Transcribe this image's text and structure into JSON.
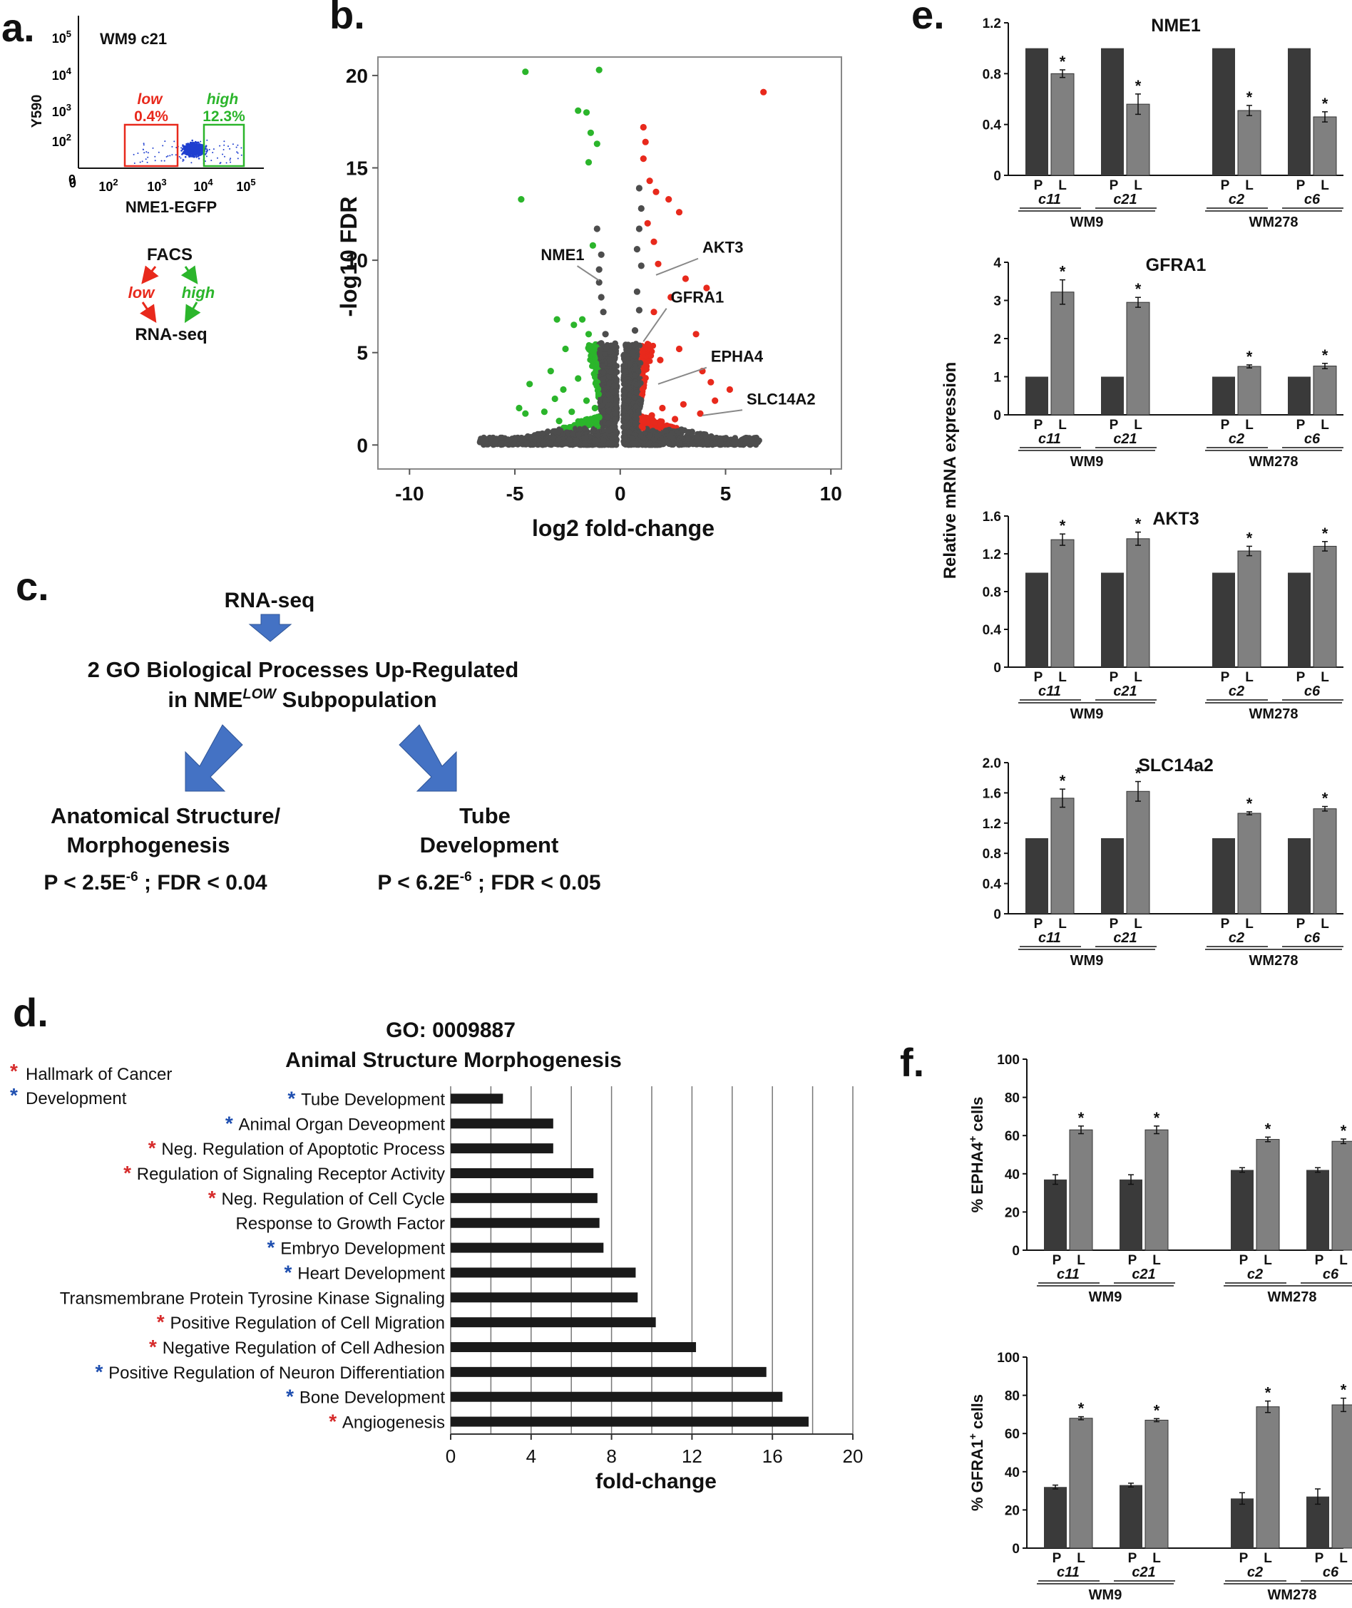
{
  "colors": {
    "dark_bar": "#3a3a3a",
    "light_bar": "#808080",
    "red": "#e8291c",
    "green": "#2bb52b",
    "blue": "#1f3fd0",
    "arrow_blue": "#4472c4",
    "gray_dot": "#555555",
    "text": "#111111",
    "star_red": "#d62b2b",
    "star_blue": "#1f4fb0"
  },
  "panel_letters": {
    "a": "a.",
    "b": "b.",
    "c": "c.",
    "d": "d.",
    "e": "e.",
    "f": "f."
  },
  "panel_a": {
    "sample_label": "WM9 c21",
    "ylabel": "Y590",
    "xlabel": "NME1-EGFP",
    "low_label": "low",
    "low_pct": "0.4%",
    "high_label": "high",
    "high_pct": "12.3%",
    "flow": {
      "top": "FACS",
      "left": "low",
      "right": "high",
      "bottom": "RNA-seq"
    }
  },
  "panel_c": {
    "top": "RNA-seq",
    "line1": "2 GO Biological Processes  Up-Regulated",
    "line2a": "in NME",
    "line2sup": "LOW",
    "line2b": " Subpopulation",
    "left_title1": "Anatomical Structure/",
    "left_title2": "Morphogenesis",
    "left_stat_a": "P < 2.5E",
    "left_stat_sup": "-6",
    "left_stat_b": " ; FDR < 0.04",
    "right_title1": "Tube",
    "right_title2": "Development",
    "right_stat_a": "P < 6.2E",
    "right_stat_sup": "-6",
    "right_stat_b": " ; FDR < 0.05"
  },
  "chart_data": [
    {
      "id": "b",
      "type": "scatter",
      "title": "",
      "xlabel": "log2 fold-change",
      "ylabel": "-log10 FDR",
      "xlim": [
        -11.5,
        10.5
      ],
      "ylim": [
        -1.3,
        21
      ],
      "xticks": [
        -10,
        -5,
        0,
        5,
        10
      ],
      "yticks": [
        0,
        5,
        10,
        15,
        20
      ],
      "series": [
        {
          "name": "down",
          "color": "green",
          "points": [
            [
              -4.5,
              20.2
            ],
            [
              -1.0,
              20.3
            ],
            [
              -2.0,
              18.1
            ],
            [
              -1.6,
              18.0
            ],
            [
              -1.4,
              16.9
            ],
            [
              -1.1,
              16.3
            ],
            [
              -1.5,
              15.3
            ],
            [
              -4.7,
              13.3
            ],
            [
              -1.3,
              10.8
            ],
            [
              -3.0,
              6.8
            ],
            [
              -2.2,
              6.5
            ],
            [
              -1.8,
              6.8
            ],
            [
              -1.5,
              6.0
            ],
            [
              -2.6,
              5.2
            ],
            [
              -3.3,
              4.0
            ],
            [
              -2.0,
              3.6
            ],
            [
              -4.3,
              3.3
            ],
            [
              -2.7,
              3.0
            ],
            [
              -3.1,
              2.5
            ],
            [
              -4.8,
              2.0
            ],
            [
              -4.5,
              1.7
            ],
            [
              -3.6,
              1.8
            ],
            [
              -2.3,
              1.8
            ],
            [
              -1.6,
              2.4
            ],
            [
              -1.2,
              2.0
            ],
            [
              -1.0,
              1.5
            ],
            [
              -2.9,
              1.3
            ],
            [
              -1.8,
              1.2
            ]
          ]
        },
        {
          "name": "up",
          "color": "red",
          "points": [
            [
              6.8,
              19.1
            ],
            [
              1.1,
              17.2
            ],
            [
              1.2,
              16.4
            ],
            [
              1.1,
              15.5
            ],
            [
              1.4,
              14.3
            ],
            [
              1.7,
              13.7
            ],
            [
              2.3,
              13.3
            ],
            [
              2.8,
              12.6
            ],
            [
              1.3,
              12.0
            ],
            [
              1.6,
              11.0
            ],
            [
              1.8,
              9.8
            ],
            [
              3.1,
              9.0
            ],
            [
              4.1,
              8.5
            ],
            [
              2.4,
              8.0
            ],
            [
              1.6,
              7.2
            ],
            [
              3.6,
              6.0
            ],
            [
              2.8,
              5.2
            ],
            [
              1.9,
              4.6
            ],
            [
              3.9,
              4.0
            ],
            [
              4.3,
              3.4
            ],
            [
              5.2,
              3.0
            ],
            [
              4.5,
              2.4
            ],
            [
              3.0,
              2.2
            ],
            [
              2.0,
              2.0
            ],
            [
              1.5,
              1.6
            ],
            [
              1.1,
              1.3
            ],
            [
              3.8,
              1.7
            ],
            [
              2.6,
              1.4
            ]
          ]
        },
        {
          "name": "ns",
          "color": "gray",
          "points": [
            [
              -1.1,
              11.7
            ],
            [
              -0.9,
              10.3
            ],
            [
              -1.0,
              9.5
            ],
            [
              -1.0,
              8.8
            ],
            [
              -0.9,
              8.0
            ],
            [
              -0.8,
              7.2
            ],
            [
              -0.7,
              6.0
            ],
            [
              -0.9,
              5.5
            ],
            [
              -0.5,
              4.6
            ],
            [
              0.9,
              13.9
            ],
            [
              1.0,
              12.8
            ],
            [
              0.9,
              11.7
            ],
            [
              0.8,
              10.6
            ],
            [
              1.0,
              9.7
            ],
            [
              0.8,
              8.3
            ],
            [
              0.9,
              7.3
            ],
            [
              0.7,
              6.2
            ],
            [
              0.6,
              5.0
            ]
          ]
        }
      ],
      "labels": [
        {
          "text": "NME1",
          "x": -1.7,
          "y": 10.0
        },
        {
          "text": "AKT3",
          "x": 3.9,
          "y": 10.4
        },
        {
          "text": "GFRA1",
          "x": 2.4,
          "y": 7.7
        },
        {
          "text": "EPHA4",
          "x": 4.3,
          "y": 4.5
        },
        {
          "text": "SLC14A2",
          "x": 6.0,
          "y": 2.2
        }
      ]
    },
    {
      "id": "d",
      "type": "bar",
      "orientation": "horizontal",
      "title_line1": "GO: 0009887",
      "title_line2": "Animal Structure Morphogenesis",
      "xlabel": "fold-change",
      "xlim": [
        0,
        20
      ],
      "xticks": [
        0,
        4,
        8,
        12,
        16,
        20
      ],
      "legend": [
        {
          "star": "red",
          "label": "Hallmark of Cancer"
        },
        {
          "star": "blue",
          "label": "Development"
        }
      ],
      "categories": [
        "Tube Development",
        "Animal Organ Deveopment",
        "Neg. Regulation of Apoptotic Process",
        "Regulation of Signaling Receptor Activity",
        "Neg. Regulation of Cell Cycle",
        "Response to Growth Factor",
        "Embryo Development",
        "Heart Development",
        "Transmembrane Protein Tyrosine Kinase Signaling",
        "Positive Regulation of Cell Migration",
        "Negative Regulation of Cell Adhesion",
        "Positive Regulation of Neuron Differentiation",
        "Bone Development",
        "Angiogenesis"
      ],
      "stars": [
        "blue",
        "blue",
        "red",
        "red",
        "red",
        "none",
        "blue",
        "blue",
        "none",
        "red",
        "red",
        "blue",
        "blue",
        "red"
      ],
      "values": [
        2.6,
        5.1,
        5.1,
        7.1,
        7.3,
        7.4,
        7.6,
        9.2,
        9.3,
        10.2,
        12.2,
        15.7,
        16.5,
        17.8
      ]
    },
    {
      "id": "e1",
      "type": "bar",
      "title": "NME1",
      "ylim": [
        0,
        1.2
      ],
      "yticks": [
        "0",
        "0.4",
        "0.8",
        "1.2"
      ],
      "ytick_values": [
        0,
        0.4,
        0.8,
        1.2
      ],
      "clones": [
        "c11",
        "c21",
        "c2",
        "c6"
      ],
      "groups": [
        "WM9",
        "WM278"
      ],
      "bar_labels": [
        "P",
        "L"
      ],
      "series": [
        {
          "name": "P",
          "values": [
            1,
            1,
            1,
            1
          ]
        },
        {
          "name": "L",
          "values": [
            0.8,
            0.56,
            0.51,
            0.46
          ],
          "err": [
            0.03,
            0.08,
            0.04,
            0.04
          ]
        }
      ],
      "significance": [
        "*",
        "*",
        "*",
        "*"
      ]
    },
    {
      "id": "e2",
      "type": "bar",
      "title": "GFRA1",
      "ylim": [
        0,
        4
      ],
      "yticks": [
        "0",
        "1",
        "2",
        "3",
        "4"
      ],
      "ytick_values": [
        0,
        1,
        2,
        3,
        4
      ],
      "clones": [
        "c11",
        "c21",
        "c2",
        "c6"
      ],
      "groups": [
        "WM9",
        "WM278"
      ],
      "bar_labels": [
        "P",
        "L"
      ],
      "series": [
        {
          "name": "P",
          "values": [
            1,
            1,
            1,
            1
          ]
        },
        {
          "name": "L",
          "values": [
            3.22,
            2.95,
            1.27,
            1.28
          ],
          "err": [
            0.32,
            0.13,
            0.04,
            0.07
          ]
        }
      ],
      "significance": [
        "*",
        "*",
        "*",
        "*"
      ]
    },
    {
      "id": "e3",
      "type": "bar",
      "title": "AKT3",
      "ylim": [
        0,
        1.6
      ],
      "yticks": [
        "0",
        "0.4",
        "0.8",
        "1.2",
        "1.6"
      ],
      "ytick_values": [
        0,
        0.4,
        0.8,
        1.2,
        1.6
      ],
      "clones": [
        "c11",
        "c21",
        "c2",
        "c6"
      ],
      "groups": [
        "WM9",
        "WM278"
      ],
      "bar_labels": [
        "P",
        "L"
      ],
      "series": [
        {
          "name": "P",
          "values": [
            1,
            1,
            1,
            1
          ]
        },
        {
          "name": "L",
          "values": [
            1.35,
            1.36,
            1.23,
            1.28
          ],
          "err": [
            0.06,
            0.07,
            0.05,
            0.05
          ]
        }
      ],
      "significance": [
        "*",
        "*",
        "*",
        "*"
      ]
    },
    {
      "id": "e4",
      "type": "bar",
      "title": "SLC14a2",
      "ylim": [
        0,
        2.0
      ],
      "yticks": [
        "0",
        "0.4",
        "0.8",
        "1.2",
        "1.6",
        "2.0"
      ],
      "ytick_values": [
        0,
        0.4,
        0.8,
        1.2,
        1.6,
        2.0
      ],
      "clones": [
        "c11",
        "c21",
        "c2",
        "c6"
      ],
      "groups": [
        "WM9",
        "WM278"
      ],
      "bar_labels": [
        "P",
        "L"
      ],
      "series": [
        {
          "name": "P",
          "values": [
            1,
            1,
            1,
            1
          ]
        },
        {
          "name": "L",
          "values": [
            1.53,
            1.62,
            1.33,
            1.39
          ],
          "err": [
            0.12,
            0.13,
            0.02,
            0.03
          ]
        }
      ],
      "significance": [
        "*",
        "*",
        "*",
        "*"
      ]
    },
    {
      "id": "f1",
      "type": "bar",
      "title": "",
      "ylim": [
        0,
        100
      ],
      "yticks": [
        "0",
        "20",
        "40",
        "60",
        "80",
        "100"
      ],
      "ytick_values": [
        0,
        20,
        40,
        60,
        80,
        100
      ],
      "ylabel_a": "% EPHA4",
      "ylabel_sup": "+",
      "ylabel_b": " cells",
      "clones": [
        "c11",
        "c21",
        "c2",
        "c6"
      ],
      "groups": [
        "WM9",
        "WM278"
      ],
      "bar_labels": [
        "P",
        "L"
      ],
      "series": [
        {
          "name": "P",
          "values": [
            37,
            37,
            42,
            42
          ],
          "err": [
            2.5,
            2.5,
            1.2,
            1.2
          ]
        },
        {
          "name": "L",
          "values": [
            63,
            63,
            58,
            57
          ],
          "err": [
            2,
            2,
            1.2,
            1.2
          ]
        }
      ],
      "significance": [
        "*",
        "*",
        "*",
        "*"
      ]
    },
    {
      "id": "f2",
      "type": "bar",
      "title": "",
      "ylim": [
        0,
        100
      ],
      "yticks": [
        "0",
        "20",
        "40",
        "60",
        "80",
        "100"
      ],
      "ytick_values": [
        0,
        20,
        40,
        60,
        80,
        100
      ],
      "ylabel_a": "% GFRA1",
      "ylabel_sup": "+",
      "ylabel_b": " cells",
      "clones": [
        "c11",
        "c21",
        "c2",
        "c6"
      ],
      "groups": [
        "WM9",
        "WM278"
      ],
      "bar_labels": [
        "P",
        "L"
      ],
      "series": [
        {
          "name": "P",
          "values": [
            32,
            33,
            26,
            27
          ],
          "err": [
            1,
            1,
            3,
            4
          ]
        },
        {
          "name": "L",
          "values": [
            68,
            67,
            74,
            75
          ],
          "err": [
            0.8,
            0.8,
            3,
            3.5
          ]
        }
      ],
      "significance": [
        "*",
        "*",
        "*",
        "*"
      ]
    }
  ],
  "panel_e_ylabel": "Relative mRNA expression"
}
